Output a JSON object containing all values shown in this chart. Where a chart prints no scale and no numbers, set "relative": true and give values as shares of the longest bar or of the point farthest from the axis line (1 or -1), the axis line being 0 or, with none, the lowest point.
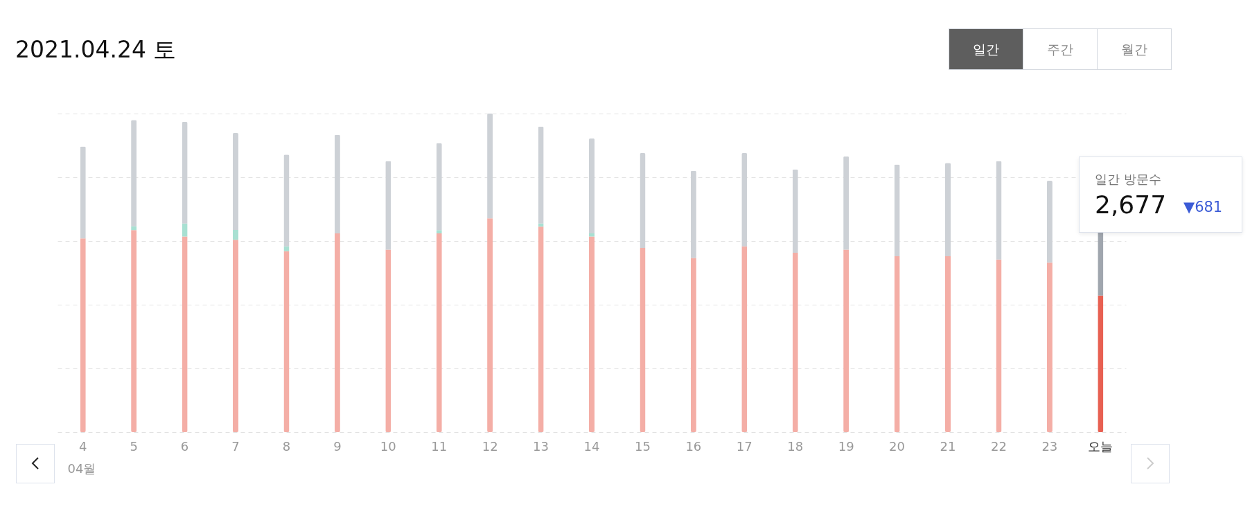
{
  "chart_data": {
    "type": "bar",
    "title": "2021.04.24 토",
    "xlabel": "04월",
    "relative": true,
    "stacked": true,
    "grid": "y",
    "categories": [
      "4",
      "5",
      "6",
      "7",
      "8",
      "9",
      "10",
      "11",
      "12",
      "13",
      "14",
      "15",
      "16",
      "17",
      "18",
      "19",
      "20",
      "21",
      "22",
      "23",
      "오늘"
    ],
    "series": [
      {
        "colors": [
          "#f4aea6",
          "#f4aea6",
          "#f4aea6",
          "#f4aea6",
          "#f4aea6",
          "#f4aea6",
          "#f4aea6",
          "#f4aea6",
          "#f4aea6",
          "#f4aea6",
          "#f4aea6",
          "#f4aea6",
          "#f4aea6",
          "#f4aea6",
          "#f4aea6",
          "#f4aea6",
          "#f4aea6",
          "#f4aea6",
          "#f4aea6",
          "#f4aea6",
          "#e86052"
        ],
        "values": [
          0.608,
          0.634,
          0.614,
          0.604,
          0.568,
          0.624,
          0.573,
          0.624,
          0.671,
          0.645,
          0.614,
          0.578,
          0.547,
          0.583,
          0.563,
          0.573,
          0.552,
          0.552,
          0.542,
          0.532,
          0.429
        ]
      },
      {
        "color": "#a8e0d2",
        "values": [
          0,
          0.012,
          0.041,
          0.031,
          0.015,
          0,
          0,
          0.01,
          0,
          0.01,
          0.01,
          0,
          0,
          0,
          0,
          0,
          0,
          0,
          0,
          0,
          0
        ]
      },
      {
        "colors": [
          "#cdd1d6",
          "#cdd1d6",
          "#cdd1d6",
          "#cdd1d6",
          "#cdd1d6",
          "#cdd1d6",
          "#cdd1d6",
          "#cdd1d6",
          "#cdd1d6",
          "#cdd1d6",
          "#cdd1d6",
          "#cdd1d6",
          "#cdd1d6",
          "#cdd1d6",
          "#cdd1d6",
          "#cdd1d6",
          "#cdd1d6",
          "#cdd1d6",
          "#cdd1d6",
          "#cdd1d6",
          "#a0a6ae"
        ],
        "values": [
          0.289,
          0.334,
          0.319,
          0.304,
          0.288,
          0.309,
          0.278,
          0.273,
          0.329,
          0.304,
          0.298,
          0.298,
          0.273,
          0.293,
          0.262,
          0.293,
          0.288,
          0.293,
          0.309,
          0.257,
          0.201
        ]
      }
    ],
    "annotations": [
      "일간",
      "주간",
      "월간",
      "일간 방문수",
      "2,677",
      "▼681"
    ]
  }
}
